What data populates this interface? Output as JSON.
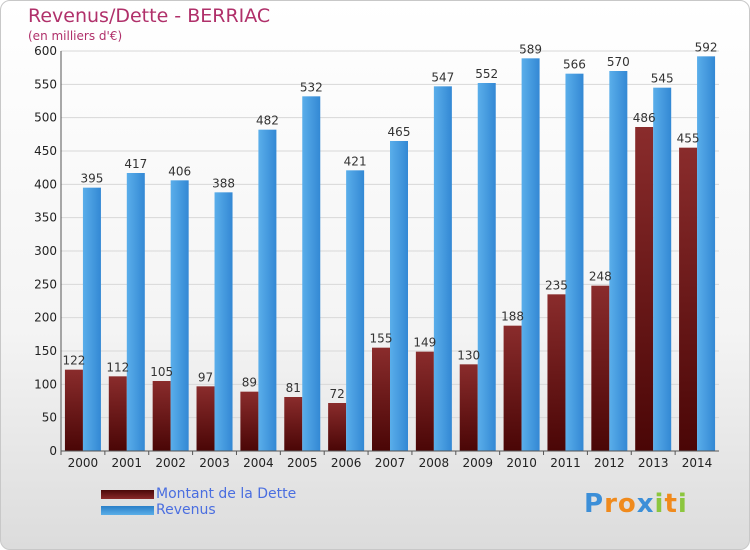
{
  "header": {
    "title": "Revenus/Dette - BERRIAC",
    "unit": "(en milliers d'€)"
  },
  "chart_data": {
    "type": "bar",
    "title": "Revenus/Dette - BERRIAC",
    "subtitle": "(en milliers d'€)",
    "categories": [
      "2000",
      "2001",
      "2002",
      "2003",
      "2004",
      "2005",
      "2006",
      "2007",
      "2008",
      "2009",
      "2010",
      "2011",
      "2012",
      "2013",
      "2014"
    ],
    "series": [
      {
        "name": "Montant de la Dette",
        "color": "#7a1a1a",
        "values": [
          122,
          112,
          105,
          97,
          89,
          81,
          72,
          155,
          149,
          130,
          188,
          235,
          248,
          486,
          455
        ]
      },
      {
        "name": "Revenus",
        "color": "#3c96de",
        "values": [
          395,
          417,
          406,
          388,
          482,
          532,
          421,
          465,
          547,
          552,
          589,
          566,
          570,
          545,
          592
        ]
      }
    ],
    "yticks": [
      0,
      50,
      100,
      150,
      200,
      250,
      300,
      350,
      400,
      450,
      500,
      550,
      600
    ],
    "ylim": [
      0,
      600
    ],
    "grid": true,
    "legend_position": "bottom-left"
  },
  "legend": {
    "items": [
      {
        "label": "Montant de la Dette",
        "color": "#7a1a1a"
      },
      {
        "label": "Revenus",
        "color": "#3c96de"
      }
    ]
  },
  "logo": {
    "letters": [
      {
        "ch": "P",
        "color": "#3c8fd8"
      },
      {
        "ch": "r",
        "color": "#f08a1c"
      },
      {
        "ch": "o",
        "color": "#f08a1c"
      },
      {
        "ch": "x",
        "color": "#3c8fd8"
      },
      {
        "ch": "i",
        "color": "#8cc63e"
      },
      {
        "ch": "t",
        "color": "#f08a1c"
      },
      {
        "ch": "i",
        "color": "#8cc63e"
      }
    ]
  }
}
